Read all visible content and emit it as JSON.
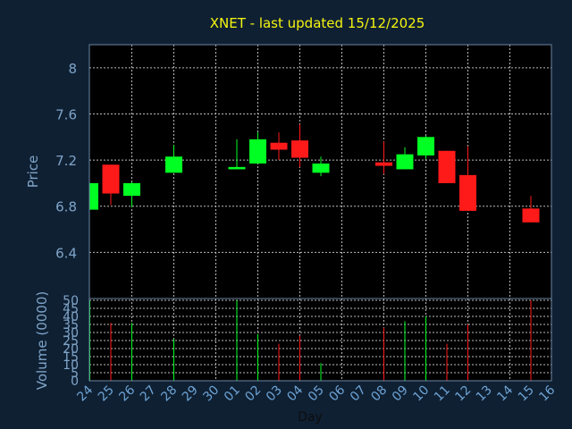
{
  "chart_data": {
    "type": "candlestick",
    "title": "XNET - last updated 15/12/2025",
    "x_axis_label": "Day",
    "price_axis_label": "Price",
    "volume_axis_label": "Volume (0000)",
    "x_tick_labels": [
      "24",
      "25",
      "26",
      "27",
      "28",
      "29",
      "30",
      "01",
      "02",
      "03",
      "04",
      "05",
      "06",
      "07",
      "08",
      "09",
      "10",
      "11",
      "12",
      "13",
      "14",
      "15",
      "16"
    ],
    "price_ticks": [
      "6.4",
      "6.8",
      "7.2",
      "7.6",
      "8"
    ],
    "price_range": [
      6.0,
      8.2
    ],
    "volume_ticks": [
      "0",
      "5",
      "10",
      "15",
      "20",
      "25",
      "30",
      "35",
      "40",
      "45",
      "50"
    ],
    "volume_range": [
      0,
      50
    ],
    "grid": true,
    "colors": {
      "background": "#0f2033",
      "plot": "#000000",
      "up": "#00ff22",
      "down": "#ff1a1a",
      "title": "#f5f50f",
      "axis_text": "#7fa4c8",
      "grid": "#bbbbbb"
    },
    "candles": [
      {
        "day": "24",
        "open": 6.77,
        "high": 7.0,
        "low": 6.77,
        "close": 7.0,
        "volume": 50
      },
      {
        "day": "25",
        "open": 7.16,
        "high": 7.16,
        "low": 6.81,
        "close": 6.91,
        "volume": 36
      },
      {
        "day": "26",
        "open": 6.89,
        "high": 7.01,
        "low": 6.79,
        "close": 7.0,
        "volume": 36
      },
      {
        "day": "28",
        "open": 7.09,
        "high": 7.33,
        "low": 7.09,
        "close": 7.23,
        "volume": 26
      },
      {
        "day": "01",
        "open": 7.12,
        "high": 7.38,
        "low": 7.12,
        "close": 7.14,
        "volume": 50
      },
      {
        "day": "02",
        "open": 7.17,
        "high": 7.44,
        "low": 7.17,
        "close": 7.38,
        "volume": 29
      },
      {
        "day": "03",
        "open": 7.35,
        "high": 7.44,
        "low": 7.2,
        "close": 7.29,
        "volume": 23
      },
      {
        "day": "04",
        "open": 7.37,
        "high": 7.51,
        "low": 7.14,
        "close": 7.22,
        "volume": 28
      },
      {
        "day": "05",
        "open": 7.09,
        "high": 7.23,
        "low": 7.06,
        "close": 7.17,
        "volume": 11
      },
      {
        "day": "08",
        "open": 7.18,
        "high": 7.36,
        "low": 7.08,
        "close": 7.15,
        "volume": 33
      },
      {
        "day": "09",
        "open": 7.12,
        "high": 7.31,
        "low": 7.12,
        "close": 7.25,
        "volume": 37
      },
      {
        "day": "10",
        "open": 7.24,
        "high": 7.41,
        "low": 7.21,
        "close": 7.4,
        "volume": 40
      },
      {
        "day": "11",
        "open": 7.28,
        "high": 7.28,
        "low": 7.0,
        "close": 7.0,
        "volume": 23
      },
      {
        "day": "12",
        "open": 7.07,
        "high": 7.32,
        "low": 6.76,
        "close": 6.76,
        "volume": 35
      },
      {
        "day": "15",
        "open": 6.78,
        "high": 6.89,
        "low": 6.66,
        "close": 6.66,
        "volume": 50
      }
    ]
  }
}
